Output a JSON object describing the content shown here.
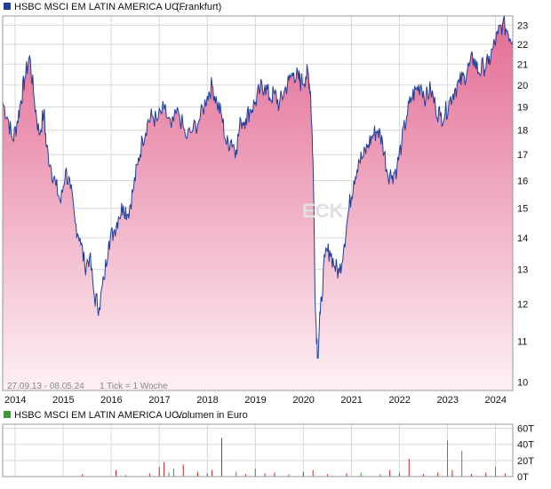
{
  "chart_data": [
    {
      "type": "area",
      "legend": {
        "name": "HSBC MSCI EM LATIN AMERICA UC...",
        "exchange": "(Frankfurt)",
        "color": "#1f3f9a",
        "placement": "top-left"
      },
      "footer": {
        "range": "27.09.13 - 08.05.24",
        "tick": "1 Tick = 1 Woche"
      },
      "watermark": "ECK",
      "x_ticks": [
        "2014",
        "2015",
        "2016",
        "2017",
        "2018",
        "2019",
        "2020",
        "2021",
        "2022",
        "2023",
        "2024"
      ],
      "y_ticks": [
        10,
        11,
        12,
        13,
        14,
        15,
        16,
        17,
        18,
        19,
        20,
        21,
        22,
        23
      ],
      "ylim": [
        9.8,
        23.5
      ],
      "y_scale": "log",
      "x_range": [
        2013.74,
        2024.36
      ],
      "grid": true,
      "line_color": "#1f3f9a",
      "fill_top_color": "#e36b94",
      "fill_bottom_color": "#fdf0f4",
      "x": [
        2013.74,
        2013.85,
        2013.95,
        2014.05,
        2014.12,
        2014.2,
        2014.3,
        2014.4,
        2014.5,
        2014.6,
        2014.65,
        2014.75,
        2014.85,
        2014.95,
        2015.05,
        2015.15,
        2015.25,
        2015.35,
        2015.45,
        2015.55,
        2015.65,
        2015.75,
        2015.85,
        2015.95,
        2016.05,
        2016.15,
        2016.25,
        2016.35,
        2016.45,
        2016.55,
        2016.65,
        2016.75,
        2016.85,
        2016.95,
        2017.1,
        2017.25,
        2017.4,
        2017.55,
        2017.7,
        2017.85,
        2018.0,
        2018.1,
        2018.2,
        2018.3,
        2018.4,
        2018.5,
        2018.6,
        2018.7,
        2018.8,
        2018.9,
        2019.0,
        2019.1,
        2019.2,
        2019.3,
        2019.4,
        2019.5,
        2019.6,
        2019.7,
        2019.8,
        2019.9,
        2019.95,
        2020.05,
        2020.1,
        2020.15,
        2020.2,
        2020.25,
        2020.3,
        2020.35,
        2020.45,
        2020.55,
        2020.65,
        2020.75,
        2020.85,
        2020.95,
        2021.05,
        2021.15,
        2021.25,
        2021.35,
        2021.45,
        2021.55,
        2021.65,
        2021.75,
        2021.85,
        2021.95,
        2022.05,
        2022.15,
        2022.25,
        2022.35,
        2022.45,
        2022.55,
        2022.65,
        2022.75,
        2022.85,
        2022.95,
        2023.05,
        2023.15,
        2023.25,
        2023.35,
        2023.45,
        2023.55,
        2023.65,
        2023.75,
        2023.85,
        2023.95,
        2024.05,
        2024.15,
        2024.25,
        2024.36
      ],
      "y": [
        19.2,
        18.5,
        17.6,
        18.4,
        19.3,
        20.3,
        21.4,
        19.3,
        17.8,
        18.8,
        17.3,
        16.5,
        15.8,
        15.2,
        16.4,
        15.7,
        14.5,
        14.0,
        13.1,
        13.4,
        12.2,
        11.9,
        12.7,
        13.9,
        14.2,
        14.7,
        15.1,
        14.8,
        15.6,
        16.6,
        17.6,
        18.3,
        18.6,
        18.4,
        18.9,
        18.1,
        18.8,
        17.7,
        18.0,
        18.5,
        19.5,
        20.0,
        19.2,
        18.6,
        17.4,
        17.6,
        17.2,
        18.4,
        18.5,
        18.9,
        19.2,
        19.8,
        20.0,
        19.4,
        19.6,
        19.1,
        19.7,
        20.2,
        20.6,
        20.3,
        20.1,
        20.4,
        20.6,
        19.6,
        16.8,
        11.8,
        10.6,
        11.7,
        13.4,
        13.6,
        13.1,
        12.9,
        13.8,
        15.0,
        16.0,
        16.8,
        16.9,
        17.4,
        17.8,
        18.0,
        17.5,
        16.3,
        16.2,
        16.5,
        17.5,
        18.6,
        19.4,
        19.8,
        20.0,
        19.4,
        19.8,
        19.0,
        18.6,
        18.7,
        19.3,
        19.8,
        20.1,
        20.4,
        20.9,
        21.3,
        20.6,
        20.9,
        21.0,
        21.8,
        22.5,
        23.1,
        22.7,
        22.2
      ]
    },
    {
      "type": "bar",
      "legend": {
        "name": "HSBC MSCI EM LATIN AMERICA UC...",
        "suffix": "Volumen in Euro",
        "color": "#3a9a3a",
        "placement": "top-left"
      },
      "y_ticks": [
        "0T",
        "20T",
        "40T",
        "60T"
      ],
      "y_tick_values": [
        0,
        20,
        40,
        60
      ],
      "ylim": [
        0,
        65
      ],
      "x_range": [
        2013.74,
        2024.36
      ],
      "up_color": "#3a9a3a",
      "down_color": "#cc2222",
      "x": [
        2015.4,
        2016.1,
        2016.3,
        2016.8,
        2017.0,
        2017.1,
        2017.2,
        2017.3,
        2017.5,
        2017.8,
        2018.0,
        2018.1,
        2018.3,
        2018.6,
        2018.8,
        2019.0,
        2019.2,
        2019.4,
        2019.7,
        2020.0,
        2020.2,
        2020.5,
        2020.9,
        2021.2,
        2021.6,
        2021.8,
        2022.0,
        2022.2,
        2022.5,
        2022.8,
        2023.0,
        2023.1,
        2023.3,
        2023.5,
        2023.8,
        2024.0,
        2024.2
      ],
      "values": [
        3,
        8,
        2,
        4,
        12,
        18,
        5,
        10,
        15,
        6,
        4,
        8,
        48,
        6,
        3,
        10,
        4,
        5,
        3,
        6,
        8,
        3,
        4,
        5,
        3,
        8,
        4,
        22,
        3,
        5,
        45,
        8,
        32,
        3,
        5,
        12,
        4
      ],
      "directions": [
        "down",
        "down",
        "up",
        "down",
        "down",
        "down",
        "up",
        "up",
        "down",
        "down",
        "down",
        "down",
        "down",
        "up",
        "down",
        "up",
        "down",
        "down",
        "up",
        "down",
        "down",
        "down",
        "down",
        "up",
        "up",
        "down",
        "down",
        "down",
        "down",
        "down",
        "up",
        "down",
        "up",
        "down",
        "down",
        "up",
        "down"
      ]
    }
  ]
}
